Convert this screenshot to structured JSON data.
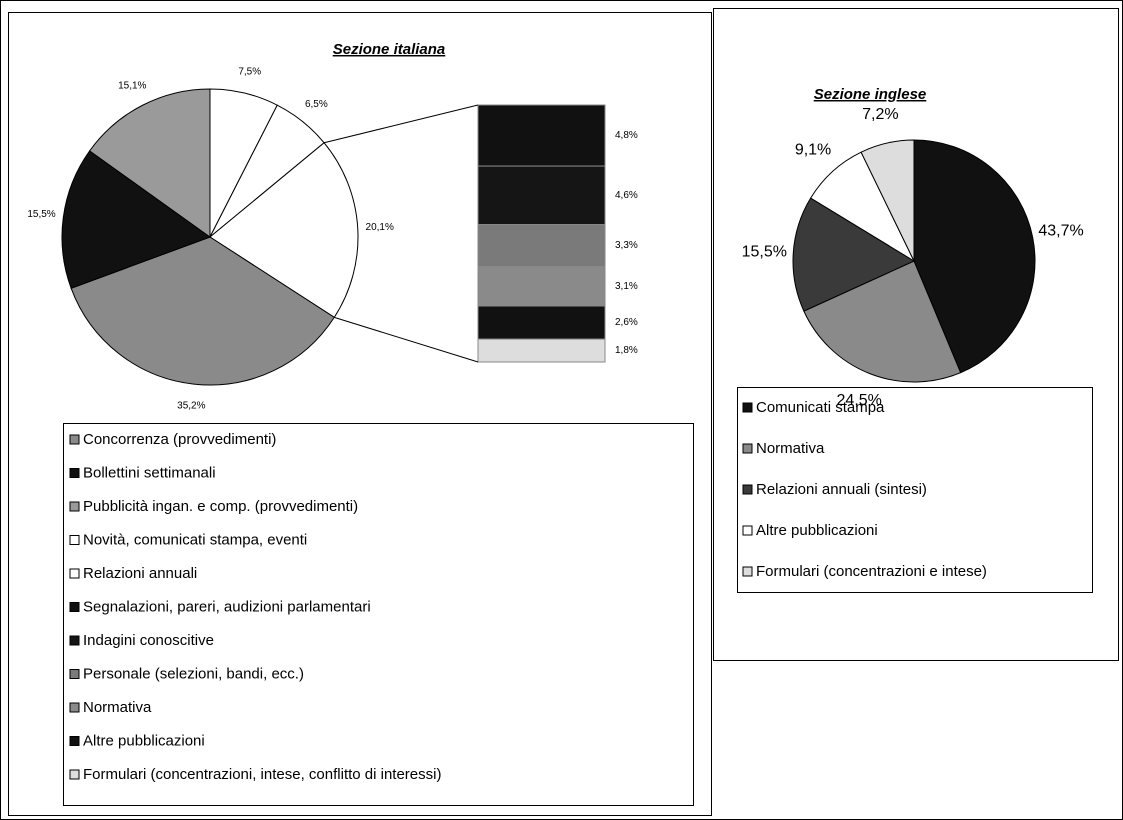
{
  "chart_data": [
    {
      "type": "pie_of_bar",
      "title": "Sezione italiana",
      "categories": [
        "Concorrenza (provvedimenti)",
        "Bollettini settimanali",
        "Pubblicità ingan. e comp. (provvedimenti)",
        "Novità, comunicati stampa, eventi",
        "Relazioni annuali",
        "Segnalazioni, pareri, audizioni parlamentari",
        "Indagini conoscitive",
        "Personale (selezioni, bandi, ecc.)",
        "Normativa",
        "Altre pubblicazioni",
        "Formulari (concentrazioni, intese, conflitto di interessi)"
      ],
      "values": [
        35.2,
        15.5,
        15.1,
        7.5,
        6.5,
        4.8,
        4.6,
        3.3,
        3.1,
        2.6,
        1.8
      ],
      "value_labels": [
        "35,2%",
        "15,5%",
        "15,1%",
        "7,5%",
        "6,5%",
        "4,8%",
        "4,6%",
        "3,3%",
        "3,1%",
        "2,6%",
        "1,8%"
      ],
      "other_value": 20.1,
      "other_value_label": "20,1%",
      "colors": [
        "#8a8a8a",
        "#111111",
        "#9a9a9a",
        "#ffffff",
        "#ffffff",
        "#111111",
        "#151515",
        "#7a7a7a",
        "#8a8a8a",
        "#111111",
        "#dddddd"
      ]
    },
    {
      "type": "pie",
      "title": "Sezione inglese",
      "categories": [
        "Comunicati stampa",
        "Normativa",
        "Relazioni annuali (sintesi)",
        "Altre pubblicazioni",
        "Formulari (concentrazioni e intese)"
      ],
      "values": [
        43.7,
        24.5,
        15.5,
        9.1,
        7.2
      ],
      "value_labels": [
        "43,7%",
        "24,5%",
        "15,5%",
        "9,1%",
        "7,2%"
      ],
      "colors": [
        "#111111",
        "#8a8a8a",
        "#3a3a3a",
        "#ffffff",
        "#dddddd"
      ]
    }
  ]
}
